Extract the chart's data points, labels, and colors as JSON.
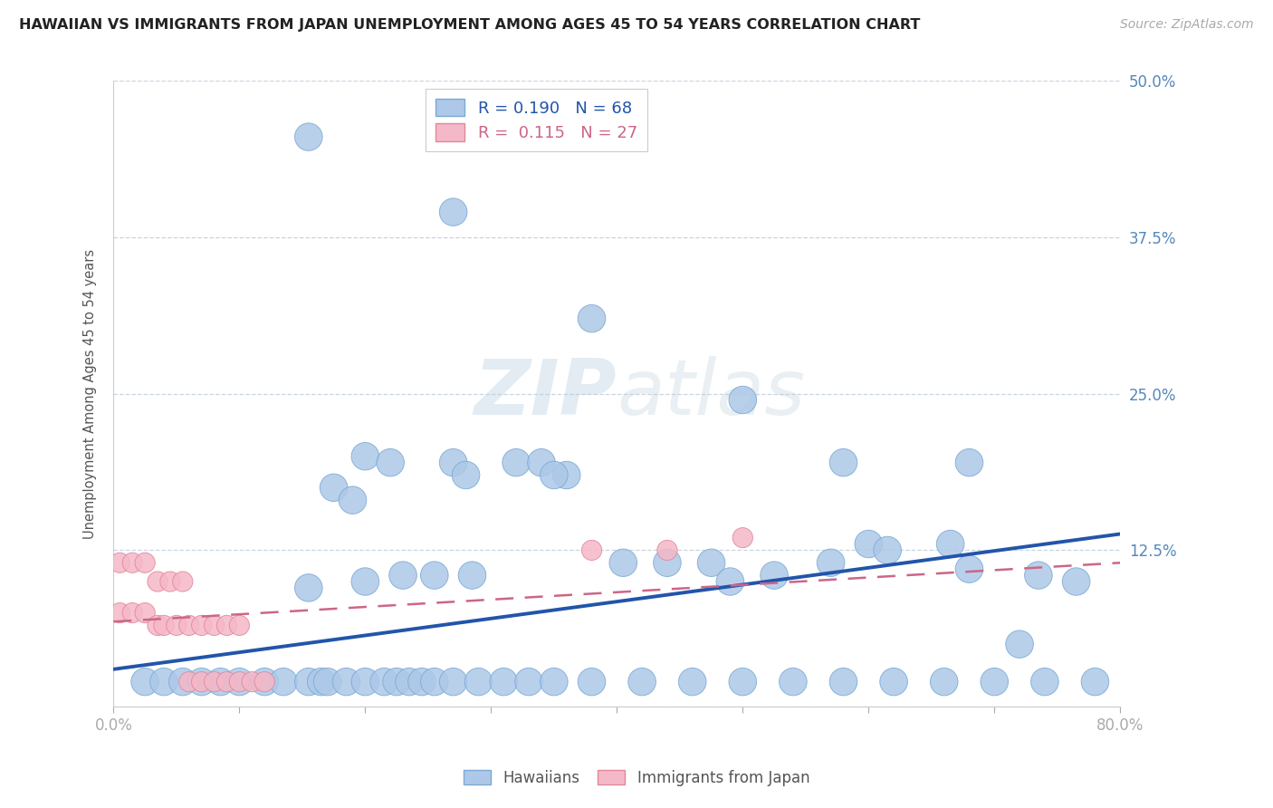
{
  "title": "HAWAIIAN VS IMMIGRANTS FROM JAPAN UNEMPLOYMENT AMONG AGES 45 TO 54 YEARS CORRELATION CHART",
  "source": "Source: ZipAtlas.com",
  "ylabel": "Unemployment Among Ages 45 to 54 years",
  "xlim": [
    0.0,
    0.8
  ],
  "ylim": [
    0.0,
    0.5
  ],
  "ytick_positions": [
    0.0,
    0.125,
    0.25,
    0.375,
    0.5
  ],
  "yticklabels": [
    "",
    "12.5%",
    "25.0%",
    "37.5%",
    "50.0%"
  ],
  "hawaiian_color": "#adc8e8",
  "hawaiian_edge_color": "#7aaad4",
  "hawaiian_line_color": "#2255aa",
  "japan_color": "#f5b8c8",
  "japan_edge_color": "#e08898",
  "japan_line_color": "#cc6688",
  "legend_R_hawaiian": "0.190",
  "legend_N_hawaiian": "68",
  "legend_R_japan": "0.115",
  "legend_N_japan": "27",
  "hawaiian_scatter_x": [
    0.155,
    0.27,
    0.38,
    0.155,
    0.2,
    0.22,
    0.175,
    0.19,
    0.27,
    0.28,
    0.32,
    0.34,
    0.36,
    0.35,
    0.2,
    0.23,
    0.255,
    0.285,
    0.405,
    0.44,
    0.475,
    0.49,
    0.525,
    0.57,
    0.6,
    0.615,
    0.665,
    0.68,
    0.735,
    0.765,
    0.025,
    0.04,
    0.055,
    0.07,
    0.085,
    0.1,
    0.12,
    0.135,
    0.155,
    0.165,
    0.17,
    0.185,
    0.2,
    0.215,
    0.225,
    0.235,
    0.245,
    0.255,
    0.27,
    0.29,
    0.31,
    0.33,
    0.35,
    0.38,
    0.42,
    0.46,
    0.5,
    0.54,
    0.58,
    0.62,
    0.66,
    0.7,
    0.74,
    0.78,
    0.5,
    0.58,
    0.68,
    0.72
  ],
  "hawaiian_scatter_y": [
    0.455,
    0.395,
    0.31,
    0.095,
    0.2,
    0.195,
    0.175,
    0.165,
    0.195,
    0.185,
    0.195,
    0.195,
    0.185,
    0.185,
    0.1,
    0.105,
    0.105,
    0.105,
    0.115,
    0.115,
    0.115,
    0.1,
    0.105,
    0.115,
    0.13,
    0.125,
    0.13,
    0.11,
    0.105,
    0.1,
    0.02,
    0.02,
    0.02,
    0.02,
    0.02,
    0.02,
    0.02,
    0.02,
    0.02,
    0.02,
    0.02,
    0.02,
    0.02,
    0.02,
    0.02,
    0.02,
    0.02,
    0.02,
    0.02,
    0.02,
    0.02,
    0.02,
    0.02,
    0.02,
    0.02,
    0.02,
    0.02,
    0.02,
    0.02,
    0.02,
    0.02,
    0.02,
    0.02,
    0.02,
    0.245,
    0.195,
    0.195,
    0.05
  ],
  "japan_scatter_x": [
    0.005,
    0.015,
    0.025,
    0.035,
    0.045,
    0.055,
    0.06,
    0.07,
    0.08,
    0.09,
    0.1,
    0.11,
    0.12,
    0.005,
    0.015,
    0.025,
    0.035,
    0.04,
    0.05,
    0.06,
    0.07,
    0.08,
    0.09,
    0.1,
    0.38,
    0.44,
    0.5
  ],
  "japan_scatter_y": [
    0.115,
    0.115,
    0.115,
    0.1,
    0.1,
    0.1,
    0.02,
    0.02,
    0.02,
    0.02,
    0.02,
    0.02,
    0.02,
    0.075,
    0.075,
    0.075,
    0.065,
    0.065,
    0.065,
    0.065,
    0.065,
    0.065,
    0.065,
    0.065,
    0.125,
    0.125,
    0.135
  ],
  "hawaiian_trend": [
    0.03,
    0.138
  ],
  "japan_trend": [
    0.068,
    0.115
  ]
}
